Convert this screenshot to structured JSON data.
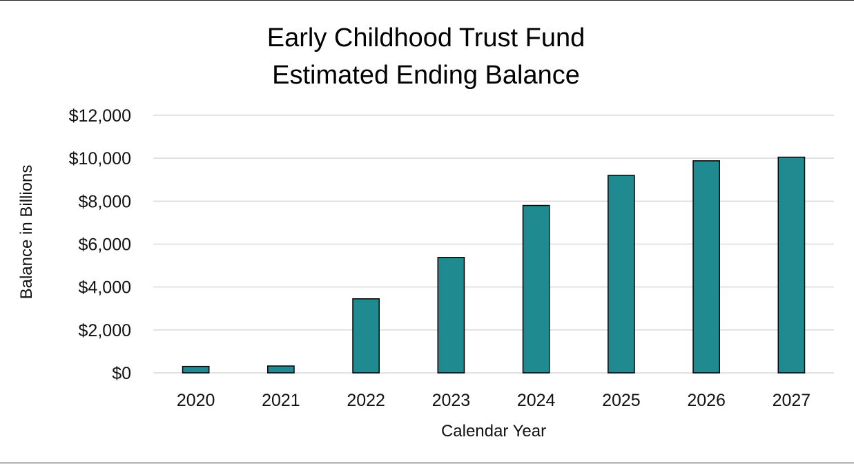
{
  "chart_data": {
    "type": "bar",
    "title_lines": [
      "Early Childhood Trust Fund",
      "Estimated Ending Balance"
    ],
    "xlabel": "Calendar Year",
    "ylabel": "Balance in Billions",
    "categories": [
      "2020",
      "2021",
      "2022",
      "2023",
      "2024",
      "2025",
      "2026",
      "2027"
    ],
    "values": [
      300,
      320,
      3450,
      5380,
      7800,
      9200,
      9880,
      10050
    ],
    "ylim": [
      0,
      12000
    ],
    "yticks": [
      0,
      2000,
      4000,
      6000,
      8000,
      10000,
      12000
    ],
    "ytick_labels": [
      "$0",
      "$2,000",
      "$4,000",
      "$6,000",
      "$8,000",
      "$10,000",
      "$12,000"
    ],
    "grid": true,
    "bar_color": "#1f8a90"
  }
}
